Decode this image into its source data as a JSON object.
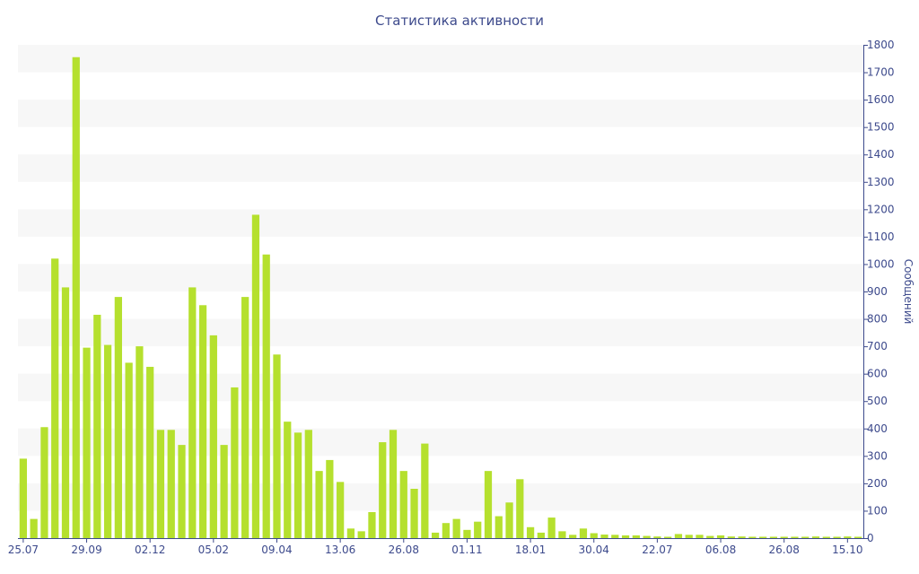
{
  "chart_data": {
    "type": "bar",
    "title": "Статистика активности",
    "xlabel": "",
    "ylabel": "Сообщений",
    "ylim": [
      0,
      1800
    ],
    "y_ticks": [
      0,
      100,
      200,
      300,
      400,
      500,
      600,
      700,
      800,
      900,
      1000,
      1100,
      1200,
      1300,
      1400,
      1500,
      1600,
      1700,
      1800
    ],
    "y_axis_side": "right",
    "grid": "alternating horizontal bands",
    "bar_color": "#b5e02e",
    "band_color": "#f7f7f7",
    "text_color": "#3d4a8c",
    "x_tick_labels": [
      {
        "label": "25.07",
        "index": 0
      },
      {
        "label": "29.09",
        "index": 6
      },
      {
        "label": "02.12",
        "index": 12
      },
      {
        "label": "05.02",
        "index": 18
      },
      {
        "label": "09.04",
        "index": 24
      },
      {
        "label": "13.06",
        "index": 30
      },
      {
        "label": "26.08",
        "index": 36
      },
      {
        "label": "01.11",
        "index": 42
      },
      {
        "label": "18.01",
        "index": 48
      },
      {
        "label": "30.04",
        "index": 54
      },
      {
        "label": "22.07",
        "index": 60
      },
      {
        "label": "06.08",
        "index": 66
      },
      {
        "label": "26.08",
        "index": 72
      },
      {
        "label": "15.10",
        "index": 78
      }
    ],
    "values": [
      290,
      70,
      405,
      1020,
      915,
      1755,
      695,
      815,
      705,
      880,
      640,
      700,
      625,
      395,
      395,
      340,
      915,
      850,
      740,
      340,
      550,
      880,
      1180,
      1035,
      670,
      425,
      385,
      395,
      245,
      285,
      205,
      35,
      25,
      95,
      350,
      395,
      245,
      180,
      345,
      20,
      55,
      70,
      30,
      60,
      245,
      80,
      130,
      215,
      40,
      20,
      75,
      25,
      12,
      35,
      18,
      13,
      12,
      10,
      10,
      8,
      6,
      5,
      15,
      12,
      12,
      8,
      10,
      6,
      6,
      5,
      5,
      5,
      5,
      5,
      5,
      6,
      5,
      5,
      6,
      5
    ]
  }
}
